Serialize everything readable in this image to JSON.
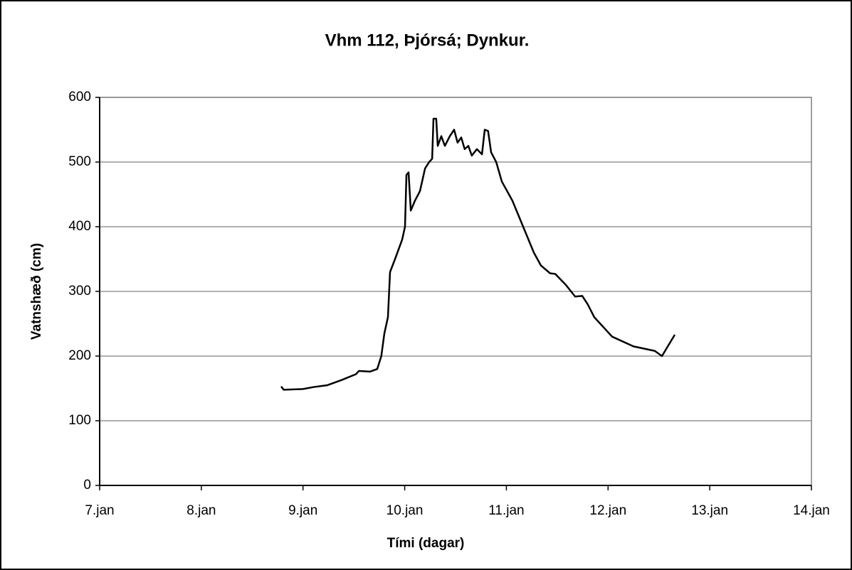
{
  "chart_data": {
    "type": "line",
    "title": "Vhm 112, Þjórsá; Dynkur.",
    "x_label": "Tími (dagar)",
    "y_label": "Vatnshæð (cm)",
    "xlim": [
      7,
      14
    ],
    "ylim": [
      0,
      600
    ],
    "xticks": [
      {
        "value": 7,
        "label": "7.jan"
      },
      {
        "value": 8,
        "label": "8.jan"
      },
      {
        "value": 9,
        "label": "9.jan"
      },
      {
        "value": 10,
        "label": "10.jan"
      },
      {
        "value": 11,
        "label": "11.jan"
      },
      {
        "value": 12,
        "label": "12.jan"
      },
      {
        "value": 13,
        "label": "13.jan"
      },
      {
        "value": 14,
        "label": "14.jan"
      }
    ],
    "yticks": [
      0,
      100,
      200,
      300,
      400,
      500,
      600
    ],
    "grid": true,
    "series": [
      {
        "color": "#000000",
        "x": [
          8.785,
          8.81,
          9.0,
          9.1,
          9.24,
          9.38,
          9.52,
          9.55,
          9.66,
          9.73,
          9.77,
          9.8,
          9.835,
          9.856,
          9.905,
          9.975,
          10.003,
          10.017,
          10.038,
          10.06,
          10.1,
          10.15,
          10.2,
          10.24,
          10.27,
          10.283,
          10.31,
          10.325,
          10.36,
          10.395,
          10.444,
          10.486,
          10.52,
          10.556,
          10.59,
          10.626,
          10.66,
          10.71,
          10.76,
          10.787,
          10.82,
          10.85,
          10.9,
          10.955,
          11.06,
          11.165,
          11.27,
          11.34,
          11.43,
          11.48,
          11.585,
          11.676,
          11.746,
          11.8,
          11.865,
          12.04,
          12.25,
          12.46,
          12.53,
          12.656
        ],
        "values": [
          153,
          148,
          149,
          152,
          155,
          163,
          172,
          177,
          176,
          180,
          200,
          235,
          260,
          330,
          350,
          380,
          400,
          480,
          484,
          425,
          440,
          455,
          490,
          500,
          505,
          567,
          567,
          525,
          540,
          525,
          540,
          550,
          530,
          538,
          520,
          525,
          510,
          520,
          512,
          550,
          548,
          515,
          500,
          470,
          440,
          400,
          360,
          340,
          328,
          327,
          310,
          292,
          293,
          280,
          260,
          230,
          215,
          208,
          200,
          233
        ]
      }
    ]
  }
}
